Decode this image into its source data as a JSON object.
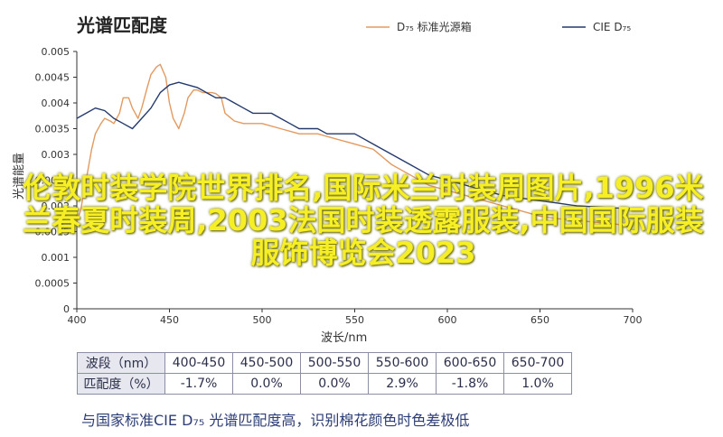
{
  "chart_data": {
    "type": "line",
    "title": "光谱匹配度",
    "xlabel": "波长/nm",
    "ylabel": "光谱能量",
    "xlim": [
      400,
      700
    ],
    "ylim": [
      0,
      0.005
    ],
    "x_ticks": [
      "400",
      "450",
      "500",
      "550",
      "600",
      "650",
      "700"
    ],
    "y_ticks": [
      "0",
      "0.0005",
      "0.001",
      "0.0015",
      "0.002",
      "0.0025",
      "0.003",
      "0.0035",
      "0.004",
      "0.0045",
      "0.005"
    ],
    "legend_position": "top-right",
    "series": [
      {
        "name": "D₇₅ 标准光源箱",
        "color": "#e39a60",
        "x": [
          400,
          402,
          405,
          408,
          410,
          413,
          415,
          418,
          420,
          423,
          425,
          428,
          430,
          433,
          435,
          438,
          440,
          443,
          445,
          448,
          450,
          452,
          455,
          458,
          460,
          463,
          465,
          468,
          470,
          473,
          475,
          478,
          480,
          485,
          490,
          495,
          500,
          510,
          520,
          530,
          540,
          550,
          560,
          570,
          580,
          590,
          600,
          610,
          620,
          630,
          640,
          650,
          660,
          670,
          680,
          690,
          700
        ],
        "y": [
          0.0017,
          0.0019,
          0.0025,
          0.0031,
          0.0034,
          0.0036,
          0.0037,
          0.00365,
          0.0036,
          0.0038,
          0.0041,
          0.0041,
          0.0039,
          0.0037,
          0.0039,
          0.0043,
          0.00455,
          0.0047,
          0.00475,
          0.0045,
          0.004,
          0.0037,
          0.0035,
          0.0038,
          0.0041,
          0.00425,
          0.00425,
          0.0042,
          0.0042,
          0.0042,
          0.00418,
          0.0041,
          0.0038,
          0.00365,
          0.0036,
          0.0036,
          0.0036,
          0.0035,
          0.0034,
          0.0034,
          0.0033,
          0.0032,
          0.0031,
          0.0028,
          0.0026,
          0.0024,
          0.0023,
          0.0022,
          0.0021,
          0.002,
          0.0019,
          0.0018,
          0.00175,
          0.00172,
          0.00168,
          0.00165,
          0.0016
        ]
      },
      {
        "name": "CIE D₇₅",
        "color": "#243a6e",
        "x": [
          400,
          405,
          410,
          415,
          420,
          425,
          430,
          435,
          440,
          445,
          450,
          455,
          460,
          465,
          470,
          475,
          480,
          485,
          490,
          495,
          500,
          505,
          510,
          515,
          520,
          525,
          530,
          535,
          540,
          545,
          550,
          560,
          570,
          580,
          590,
          600,
          610,
          620,
          630,
          640,
          650,
          660,
          670,
          680,
          690,
          700
        ],
        "y": [
          0.0037,
          0.0038,
          0.0039,
          0.00385,
          0.0037,
          0.0036,
          0.0035,
          0.0037,
          0.0039,
          0.0042,
          0.00435,
          0.0044,
          0.00435,
          0.0043,
          0.0042,
          0.0041,
          0.0041,
          0.004,
          0.0039,
          0.0038,
          0.0038,
          0.0038,
          0.0037,
          0.0036,
          0.0035,
          0.0035,
          0.0035,
          0.0034,
          0.0034,
          0.0034,
          0.0034,
          0.0032,
          0.003,
          0.0028,
          0.0026,
          0.0025,
          0.0024,
          0.0023,
          0.0022,
          0.00215,
          0.0021,
          0.00205,
          0.002,
          0.00198,
          0.00196,
          0.00195
        ]
      }
    ]
  },
  "overlay_text": "伦敦时装学院世界排名,国际米兰时装周图片,1996米兰春夏时装周,2003法国时装透露服装,中国国际服装服饰博览会2023",
  "table": {
    "header_label": "波段（nm）",
    "value_label": "匹配度（%）",
    "bands": [
      "400-450",
      "450-500",
      "500-550",
      "550-600",
      "600-650",
      "650-700"
    ],
    "values": [
      "-1.7%",
      "0.0%",
      "0.0%",
      "2.9%",
      "-1.8%",
      "1.0%"
    ]
  },
  "footer": "与国家标准CIE D₇₅ 光谱匹配度高，识别棉花颜色时色差极低"
}
